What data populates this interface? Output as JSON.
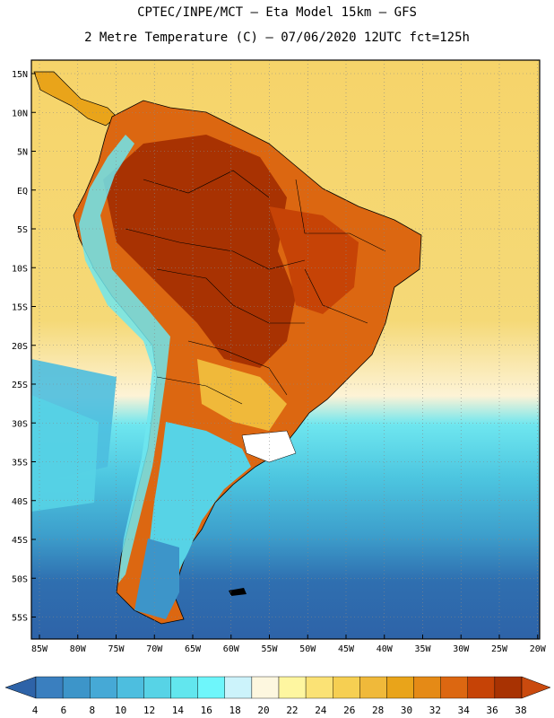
{
  "title": {
    "line1": "CPTEC/INPE/MCT –  Eta Model 15km – GFS",
    "line2": "2 Metre Temperature (C) – 07/06/2020 12UTC fct=125h"
  },
  "axes": {
    "lat_labels": [
      "15N",
      "10N",
      "5N",
      "EQ",
      "5S",
      "10S",
      "15S",
      "20S",
      "25S",
      "30S",
      "35S",
      "40S",
      "45S",
      "50S",
      "55S"
    ],
    "lon_labels": [
      "85W",
      "80W",
      "75W",
      "70W",
      "65W",
      "60W",
      "55W",
      "50W",
      "45W",
      "40W",
      "35W",
      "30W",
      "25W",
      "20W"
    ]
  },
  "colorbar": {
    "labels": [
      "4",
      "6",
      "8",
      "10",
      "12",
      "14",
      "16",
      "18",
      "20",
      "22",
      "24",
      "26",
      "28",
      "30",
      "32",
      "34",
      "36",
      "38"
    ],
    "colors": [
      "#2e63a8",
      "#3a7fbf",
      "#3d95c9",
      "#46a9d6",
      "#4dbedf",
      "#57d3e6",
      "#62e6ee",
      "#6ef6fb",
      "#ccf3fb",
      "#fdf7df",
      "#fef6a0",
      "#fbe275",
      "#f6cf52",
      "#f0b93a",
      "#e9a41a",
      "#e58a16",
      "#dc6711",
      "#c64306",
      "#a83202",
      "#ca4a0e"
    ]
  },
  "legend_regions": {
    "ocean_cold": "#2e63a8",
    "ocean_mid": "#4dbedf",
    "ocean_warm": "#f6d46a",
    "land_hot": "#a83202"
  }
}
